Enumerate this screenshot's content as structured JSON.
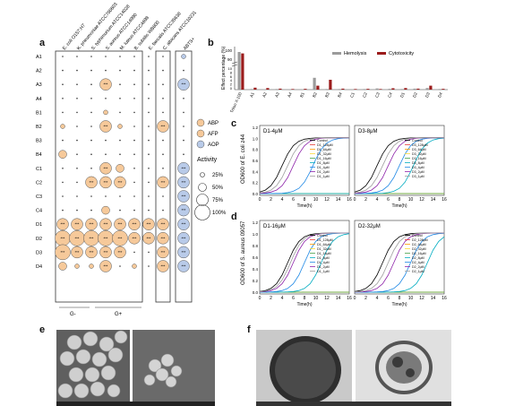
{
  "panels": {
    "a": "a",
    "b": "b",
    "c": "c",
    "d": "d",
    "e": "e",
    "f": "f"
  },
  "panel_a": {
    "columns": [
      "E. coli O157:H7",
      "K. pneumoniae ATCC700603",
      "S. typhimurium ATCC14028",
      "S. aureus ATCC14990",
      "M. luteus ATCC4698",
      "B. subtilis WB800",
      "E. faecalis ATCC35638",
      "C. albicans ATCC10231",
      "ABTS+"
    ],
    "rows": [
      "A1",
      "A2",
      "A3",
      "A4",
      "B1",
      "B2",
      "B3",
      "B4",
      "C1",
      "C2",
      "C3",
      "C4",
      "D1",
      "D2",
      "D3",
      "D4"
    ],
    "groups": {
      "gneg": "G-",
      "gpos": "G+"
    },
    "legend": {
      "abp": "ABP",
      "afp": "AFP",
      "aop": "AOP",
      "activity_title": "Activity",
      "sizes": [
        "25%",
        "50%",
        "75%",
        "100%"
      ]
    },
    "star_label": "***",
    "colors": {
      "abp": "#f6c99a",
      "afp": "#f6c99a",
      "aop": "#b9cbe9",
      "edge": "#555"
    },
    "cells": [
      [
        0,
        0,
        0,
        0,
        0,
        0,
        0,
        0,
        1
      ],
      [
        0,
        0,
        0,
        0,
        0,
        0,
        0,
        0,
        0
      ],
      [
        0,
        0,
        0,
        3,
        0,
        0,
        0,
        0,
        3
      ],
      [
        0,
        0,
        0,
        0,
        0,
        0,
        0,
        0,
        0
      ],
      [
        0,
        0,
        0,
        1,
        0,
        0,
        0,
        0,
        0
      ],
      [
        1,
        0,
        0,
        3,
        1,
        0,
        0,
        3,
        0
      ],
      [
        0,
        0,
        0,
        0,
        0,
        0,
        0,
        0,
        0
      ],
      [
        2,
        0,
        0,
        0,
        0,
        0,
        0,
        0,
        0
      ],
      [
        0,
        0,
        0,
        3,
        2,
        0,
        0,
        0,
        3
      ],
      [
        0,
        0,
        3,
        3,
        3,
        0,
        0,
        3,
        3
      ],
      [
        0,
        0,
        0,
        0,
        0,
        0,
        0,
        0,
        3
      ],
      [
        0,
        0,
        0,
        2,
        0,
        0,
        0,
        0,
        3
      ],
      [
        3,
        3,
        3,
        3,
        3,
        3,
        3,
        3,
        3
      ],
      [
        4,
        4,
        4,
        4,
        4,
        3,
        3,
        3,
        3
      ],
      [
        4,
        3,
        3,
        3,
        3,
        0,
        0,
        3,
        3
      ],
      [
        2,
        1,
        1,
        3,
        0,
        1,
        0,
        3,
        3
      ]
    ]
  },
  "panel_b": {
    "ylabel": "Effect percentage (%)",
    "legend": {
      "hemolysis": "Hemolysis",
      "cytotoxicity": "Cytotoxicity"
    },
    "colors": {
      "hemolysis": "#9b9b9b",
      "cytotoxicity": "#9b1c1c"
    },
    "yticks_top": [
      "100",
      "90"
    ],
    "yticks_bottom": [
      "10",
      "8",
      "6",
      "4",
      "2",
      "0"
    ],
    "categories": [
      "Triton X-100",
      "A1",
      "A2",
      "A3",
      "A4",
      "B1",
      "B2",
      "B3",
      "B4",
      "C1",
      "C2",
      "C3",
      "C4",
      "D1",
      "D2",
      "D3",
      "D4"
    ],
    "hemolysis": [
      100,
      0.3,
      0.2,
      0.3,
      0.2,
      0.2,
      6,
      0.3,
      0.3,
      0.2,
      0.3,
      0.6,
      0.4,
      0.3,
      0.5,
      0.8,
      0.3
    ],
    "cytotoxicity": [
      99,
      1,
      0.8,
      0.5,
      0.3,
      0.4,
      2,
      5,
      0.5,
      0.3,
      0.4,
      0.3,
      0.7,
      0.8,
      0.5,
      2,
      0.4
    ]
  },
  "panel_c": {
    "ylabel": "OD600 of E. coli z44",
    "xlabel": "Time(h)",
    "xticks": [
      "0",
      "2",
      "4",
      "6",
      "8",
      "10",
      "12",
      "14",
      "16"
    ],
    "yticks": [
      "1.2",
      "1.0",
      "0.8",
      "0.6",
      "0.4",
      "0.2",
      "0.0"
    ],
    "left": {
      "label": "D1-4μM",
      "legend": [
        "Control",
        "D1_128μM",
        "D1_64μM",
        "D1_32μM",
        "D1_16μM",
        "D1_8μM",
        "D1_4μM",
        "D1_2μM",
        "D1_1μM"
      ]
    },
    "right": {
      "label": "D3-8μM",
      "legend": [
        "Control",
        "D3_128μM",
        "D3_64μM",
        "D3_32μM",
        "D3_16μM",
        "D3_8μM",
        "D3_4μM",
        "D3_2μM",
        "D3_1μM"
      ]
    }
  },
  "panel_d": {
    "ylabel": "OD600 of S. aureus 09057",
    "xlabel": "Time(h)",
    "xticks": [
      "0",
      "2",
      "4",
      "6",
      "8",
      "10",
      "12",
      "14",
      "16"
    ],
    "yticks": [
      "1.2",
      "1.0",
      "0.8",
      "0.6",
      "0.4",
      "0.2",
      "0.0"
    ],
    "left": {
      "label": "D1-16μM",
      "legend": [
        "Control",
        "D1_128μM",
        "D1_64μM",
        "D1_32μM",
        "D1_16μM",
        "D1_8μM",
        "D1_4μM",
        "D1_2μM",
        "D1_1μM"
      ]
    },
    "right": {
      "label": "D2-32μM",
      "legend": [
        "Control",
        "D2_128μM",
        "D2_64μM",
        "D2_32μM",
        "D2_16μM",
        "D2_8μM",
        "D2_4μM",
        "D2_2μM",
        "D2_1μM"
      ]
    }
  }
}
